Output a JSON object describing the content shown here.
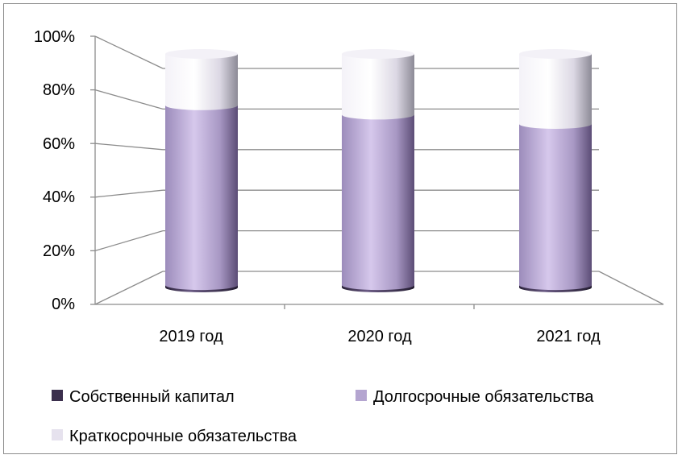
{
  "chart_data": {
    "type": "bar",
    "stacked": true,
    "style": "3d-cylinder",
    "categories": [
      "2019 год",
      "2020 год",
      "2021 год"
    ],
    "series": [
      {
        "name": "Собственный капитал",
        "values": [
          1,
          1,
          1
        ],
        "color": "#3b2f4d"
      },
      {
        "name": "Долгосрочные обязательства",
        "values": [
          77,
          73,
          69
        ],
        "color": "#b4a5d0"
      },
      {
        "name": "Краткосрочные обязательства",
        "values": [
          22,
          26,
          30
        ],
        "color": "#e6e2ee"
      }
    ],
    "y_ticks": [
      "0%",
      "20%",
      "40%",
      "60%",
      "80%",
      "100%"
    ],
    "ylim": [
      0,
      100
    ],
    "grid": true,
    "legend": "bottom"
  }
}
